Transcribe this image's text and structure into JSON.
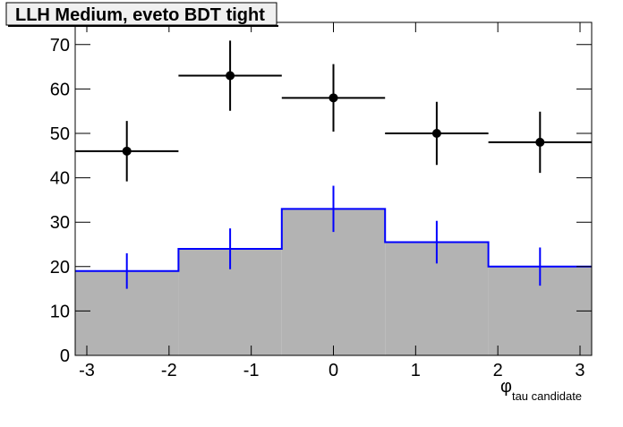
{
  "chart_data": {
    "type": "histogram",
    "title": "LLH Medium, eveto BDT tight",
    "xlabel": "φ",
    "xlabel_sub": "tau candidate",
    "bins": [
      -3.1416,
      -1.885,
      -0.6283,
      0.6283,
      1.885,
      3.1416
    ],
    "values": [
      19,
      24,
      33,
      25.5,
      20
    ],
    "errors": [
      4,
      4.6,
      5.2,
      4.8,
      4.3
    ],
    "fill_color": "#b3b3b3",
    "line_color": "#0000ff",
    "data_values": [
      46,
      63,
      58,
      50,
      48
    ],
    "data_errors": [
      6.8,
      7.9,
      7.6,
      7.1,
      6.9
    ],
    "data_color": "#000000",
    "xlim": [
      -3.1416,
      3.1416
    ],
    "xticks": [
      -3,
      -2,
      -1,
      0,
      1,
      2,
      3
    ],
    "ylim": [
      0,
      75
    ],
    "yticks": [
      0,
      10,
      20,
      30,
      40,
      50,
      60,
      70
    ]
  }
}
